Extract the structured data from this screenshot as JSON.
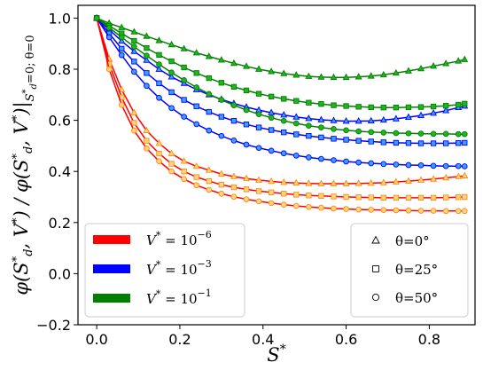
{
  "chart_data": {
    "type": "line",
    "title": "",
    "xlabel": "S*",
    "ylabel": "φ(S*_d, V*) / φ(S*_d, V*)|_{S*_d = 0; θ = 0}",
    "xlim": [
      -0.045,
      0.91
    ],
    "ylim": [
      -0.2,
      1.05
    ],
    "xticks": [
      "0.0",
      "0.2",
      "0.4",
      "0.6",
      "0.8"
    ],
    "xtick_values": [
      0,
      0.2,
      0.4,
      0.6,
      0.8
    ],
    "yticks": [
      "1.0",
      "0.8",
      "0.6",
      "0.4",
      "0.2",
      "0.0",
      "−0.2"
    ],
    "ytick_values": [
      1.0,
      0.8,
      0.6,
      0.4,
      0.2,
      0.0,
      -0.2
    ],
    "grid": false,
    "x": [
      0,
      0.03,
      0.06,
      0.09,
      0.12,
      0.15,
      0.18,
      0.21,
      0.24,
      0.27,
      0.3,
      0.33,
      0.36,
      0.39,
      0.42,
      0.45,
      0.48,
      0.51,
      0.54,
      0.57,
      0.6,
      0.63,
      0.66,
      0.69,
      0.72,
      0.75,
      0.78,
      0.81,
      0.84,
      0.87,
      0.885
    ],
    "series": [
      {
        "name": "V* = 10^-6, θ = 0°",
        "color": "#ff0000",
        "marker": "triangle",
        "values": [
          1.0,
          0.84,
          0.72,
          0.63,
          0.56,
          0.51,
          0.47,
          0.44,
          0.42,
          0.405,
          0.39,
          0.38,
          0.372,
          0.366,
          0.361,
          0.357,
          0.355,
          0.353,
          0.352,
          0.352,
          0.352,
          0.353,
          0.354,
          0.356,
          0.359,
          0.362,
          0.366,
          0.37,
          0.375,
          0.38,
          0.383
        ]
      },
      {
        "name": "V* = 10^-6, θ = 25°",
        "color": "#ff0000",
        "marker": "square",
        "values": [
          1.0,
          0.82,
          0.69,
          0.59,
          0.52,
          0.47,
          0.43,
          0.4,
          0.378,
          0.362,
          0.348,
          0.338,
          0.33,
          0.323,
          0.318,
          0.313,
          0.309,
          0.306,
          0.304,
          0.302,
          0.3,
          0.299,
          0.298,
          0.297,
          0.297,
          0.297,
          0.297,
          0.297,
          0.298,
          0.299,
          0.3
        ]
      },
      {
        "name": "V* = 10^-6, θ = 50°",
        "color": "#ff0000",
        "marker": "circle",
        "values": [
          1.0,
          0.8,
          0.66,
          0.56,
          0.49,
          0.44,
          0.4,
          0.37,
          0.346,
          0.328,
          0.313,
          0.301,
          0.291,
          0.283,
          0.276,
          0.27,
          0.265,
          0.261,
          0.258,
          0.255,
          0.253,
          0.251,
          0.25,
          0.249,
          0.248,
          0.247,
          0.246,
          0.246,
          0.245,
          0.245,
          0.245
        ]
      },
      {
        "name": "V* = 10^-3, θ = 0°",
        "color": "#0000ff",
        "marker": "triangle",
        "values": [
          1.0,
          0.955,
          0.91,
          0.87,
          0.835,
          0.8,
          0.77,
          0.745,
          0.72,
          0.7,
          0.682,
          0.666,
          0.652,
          0.64,
          0.63,
          0.621,
          0.613,
          0.607,
          0.602,
          0.599,
          0.597,
          0.597,
          0.598,
          0.601,
          0.606,
          0.612,
          0.619,
          0.628,
          0.638,
          0.65,
          0.656
        ]
      },
      {
        "name": "V* = 10^-3, θ = 25°",
        "color": "#0000ff",
        "marker": "square",
        "values": [
          1.0,
          0.94,
          0.88,
          0.83,
          0.785,
          0.745,
          0.71,
          0.68,
          0.655,
          0.633,
          0.614,
          0.598,
          0.584,
          0.572,
          0.562,
          0.553,
          0.545,
          0.539,
          0.533,
          0.528,
          0.524,
          0.52,
          0.517,
          0.514,
          0.512,
          0.511,
          0.51,
          0.51,
          0.51,
          0.511,
          0.512
        ]
      },
      {
        "name": "V* = 10^-3, θ = 50°",
        "color": "#0000ff",
        "marker": "circle",
        "values": [
          1.0,
          0.925,
          0.855,
          0.79,
          0.735,
          0.688,
          0.648,
          0.614,
          0.585,
          0.56,
          0.539,
          0.521,
          0.505,
          0.492,
          0.481,
          0.471,
          0.462,
          0.455,
          0.449,
          0.444,
          0.439,
          0.435,
          0.432,
          0.429,
          0.427,
          0.425,
          0.424,
          0.422,
          0.421,
          0.421,
          0.42
        ]
      },
      {
        "name": "V* = 10^-1, θ = 0°",
        "color": "#008000",
        "marker": "triangle",
        "values": [
          1.0,
          0.98,
          0.963,
          0.946,
          0.929,
          0.912,
          0.896,
          0.88,
          0.864,
          0.85,
          0.836,
          0.823,
          0.811,
          0.8,
          0.791,
          0.783,
          0.777,
          0.772,
          0.769,
          0.768,
          0.768,
          0.77,
          0.773,
          0.778,
          0.785,
          0.793,
          0.802,
          0.812,
          0.822,
          0.832,
          0.838
        ]
      },
      {
        "name": "V* = 10^-1, θ = 25°",
        "color": "#008000",
        "marker": "square",
        "values": [
          1.0,
          0.97,
          0.94,
          0.911,
          0.883,
          0.856,
          0.831,
          0.807,
          0.785,
          0.765,
          0.747,
          0.731,
          0.717,
          0.704,
          0.693,
          0.684,
          0.676,
          0.669,
          0.664,
          0.659,
          0.656,
          0.653,
          0.651,
          0.65,
          0.65,
          0.651,
          0.652,
          0.654,
          0.657,
          0.661,
          0.665
        ]
      },
      {
        "name": "V* = 10^-1, θ = 50°",
        "color": "#008000",
        "marker": "circle",
        "values": [
          1.0,
          0.962,
          0.925,
          0.888,
          0.853,
          0.819,
          0.787,
          0.757,
          0.729,
          0.703,
          0.68,
          0.659,
          0.64,
          0.624,
          0.61,
          0.598,
          0.588,
          0.579,
          0.572,
          0.566,
          0.561,
          0.557,
          0.554,
          0.552,
          0.55,
          0.549,
          0.548,
          0.547,
          0.547,
          0.546,
          0.546
        ]
      }
    ],
    "legend_left": {
      "placement": "lower-left",
      "entries": [
        {
          "label_prefix": "V",
          "label_sup": "*",
          "label_mid": " = 10",
          "label_exp": "−6",
          "color": "#ff0000"
        },
        {
          "label_prefix": "V",
          "label_sup": "*",
          "label_mid": " = 10",
          "label_exp": "−3",
          "color": "#0000ff"
        },
        {
          "label_prefix": "V",
          "label_sup": "*",
          "label_mid": " = 10",
          "label_exp": "−1",
          "color": "#008000"
        }
      ]
    },
    "legend_right": {
      "placement": "lower-right",
      "entries": [
        {
          "marker": "triangle",
          "label": "θ=0°"
        },
        {
          "marker": "square",
          "label": "θ=25°"
        },
        {
          "marker": "circle",
          "label": "θ=50°"
        }
      ]
    },
    "marker_edge_color": "#ff8c00"
  }
}
